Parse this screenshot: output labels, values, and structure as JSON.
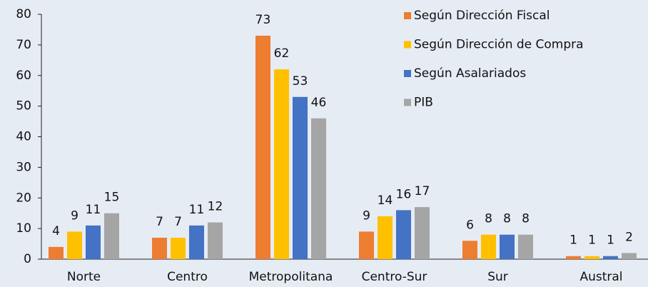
{
  "chart_data": {
    "type": "bar",
    "categories": [
      "Norte",
      "Centro",
      "Metropolitana",
      "Centro-Sur",
      "Sur",
      "Austral"
    ],
    "series": [
      {
        "name": "Según Dirección Fiscal",
        "color": "#ed7d31",
        "values": [
          4,
          7,
          73,
          9,
          6,
          1
        ]
      },
      {
        "name": "Según Dirección de Compra",
        "color": "#ffc000",
        "values": [
          9,
          7,
          62,
          14,
          8,
          1
        ]
      },
      {
        "name": "Según Asalariados",
        "color": "#4472c4",
        "values": [
          11,
          11,
          53,
          16,
          8,
          1
        ]
      },
      {
        "name": "PIB",
        "color": "#a5a5a5",
        "values": [
          15,
          12,
          46,
          17,
          8,
          2
        ]
      }
    ],
    "ylim": [
      0,
      80
    ],
    "yticks": [
      0,
      10,
      20,
      30,
      40,
      50,
      60,
      70,
      80
    ],
    "grid": false,
    "legend": "top-right"
  }
}
